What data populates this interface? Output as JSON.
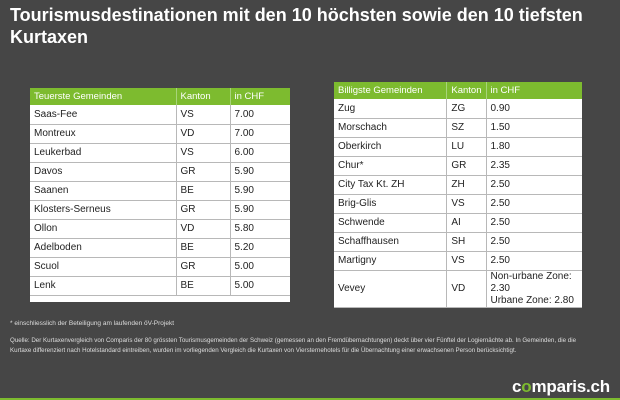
{
  "title": "Tourismusdestinationen mit den 10 höchsten sowie den 10 tiefsten Kurtaxen",
  "left_table": {
    "headers": [
      "Teuerste Gemeinden",
      "Kanton",
      "in CHF"
    ],
    "rows": [
      [
        "Saas-Fee",
        "VS",
        "7.00"
      ],
      [
        "Montreux",
        "VD",
        "7.00"
      ],
      [
        "Leukerbad",
        "VS",
        "6.00"
      ],
      [
        "Davos",
        "GR",
        "5.90"
      ],
      [
        "Saanen",
        "BE",
        "5.90"
      ],
      [
        "Klosters-Serneus",
        "GR",
        "5.90"
      ],
      [
        "Ollon",
        "VD",
        "5.80"
      ],
      [
        "Adelboden",
        "BE",
        "5.20"
      ],
      [
        "Scuol",
        "GR",
        "5.00"
      ],
      [
        "Lenk",
        "BE",
        "5.00"
      ]
    ]
  },
  "right_table": {
    "headers": [
      "Billigste Gemeinden",
      "Kanton",
      "in CHF"
    ],
    "rows": [
      [
        "Zug",
        "ZG",
        "0.90"
      ],
      [
        "Morschach",
        "SZ",
        "1.50"
      ],
      [
        "Oberkirch",
        "LU",
        "1.80"
      ],
      [
        "Chur*",
        "GR",
        "2.35"
      ],
      [
        "City Tax Kt. ZH",
        "ZH",
        "2.50"
      ],
      [
        "Brig-Glis",
        "VS",
        "2.50"
      ],
      [
        "Schwende",
        "AI",
        "2.50"
      ],
      [
        "Schaffhausen",
        "SH",
        "2.50"
      ],
      [
        "Martigny",
        "VS",
        "2.50"
      ]
    ],
    "last_row": {
      "name": "Vevey",
      "kanton": "VD",
      "value_line1": "Non-urbane Zone: 2.30",
      "value_line2": "Urbane Zone: 2.80"
    }
  },
  "footnote": "* einschliesslich der Beteiligung am laufenden öV-Projekt",
  "source": "Quelle: Der Kurtaxenvergleich von Comparis der 80 grössten Tourismusgemeinden der Schweiz (gemessen an den Fremdübernachtungen) deckt über vier Fünftel der Logiernächte ab. In Gemeinden, die die Kurtaxe differenziert nach Hotelstandard eintreiben, wurden im vorliegenden Vergleich die Kurtaxen von Viersternehotels für die Übernachtung einer erwachsenen Person berücksichtigt.",
  "brand": {
    "part1": "c",
    "dot": "o",
    "part2": "mparis.ch"
  },
  "colors": {
    "background": "#464646",
    "accent": "#7dbb2f"
  }
}
